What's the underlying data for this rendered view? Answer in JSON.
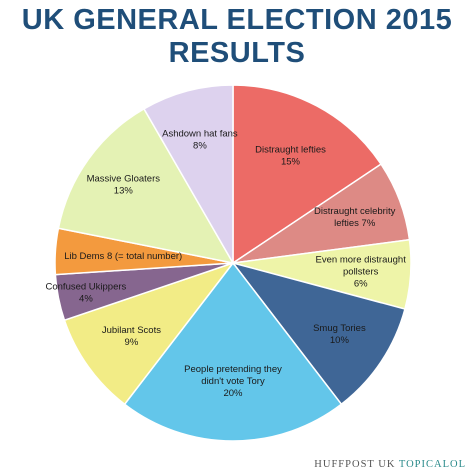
{
  "header": {
    "title_line1": "UK GENERAL ELECTION 2015",
    "title_line2": "RESULTS"
  },
  "chart_data": {
    "type": "pie",
    "title": "UK GENERAL ELECTION 2015 RESULTS",
    "slices": [
      {
        "label_lines": [
          "Distraught lefties",
          "15%"
        ],
        "value": 15,
        "color": "#ec6b66"
      },
      {
        "label_lines": [
          "Distraught celebrity",
          "lefties 7%"
        ],
        "value": 7,
        "color": "#dd8a85"
      },
      {
        "label_lines": [
          "Even more distraught",
          "pollsters",
          "6%"
        ],
        "value": 6,
        "color": "#eef4a8"
      },
      {
        "label_lines": [
          "Smug Tories",
          "10%"
        ],
        "value": 10,
        "color": "#3f6696"
      },
      {
        "label_lines": [
          "People pretending they",
          "didn't vote Tory",
          "20%"
        ],
        "value": 20,
        "color": "#63c6ea"
      },
      {
        "label_lines": [
          "Jubilant Scots",
          "9%"
        ],
        "value": 9,
        "color": "#f2ec86"
      },
      {
        "label_lines": [
          "Confused Ukippers",
          "4%"
        ],
        "value": 4,
        "color": "#86668f"
      },
      {
        "label_lines": [
          "Lib Dems 8 (= total number)"
        ],
        "value": 4,
        "color": "#f39a3e"
      },
      {
        "label_lines": [
          "Massive Gloaters",
          "13%"
        ],
        "value": 13,
        "color": "#e4f2b4"
      },
      {
        "label_lines": [
          "Ashdown hat fans",
          "8%"
        ],
        "value": 8,
        "color": "#ddd2ee"
      }
    ]
  },
  "footer": {
    "credit_main": "HUFFPOST UK ",
    "credit_accent": "TOPICALOL"
  }
}
